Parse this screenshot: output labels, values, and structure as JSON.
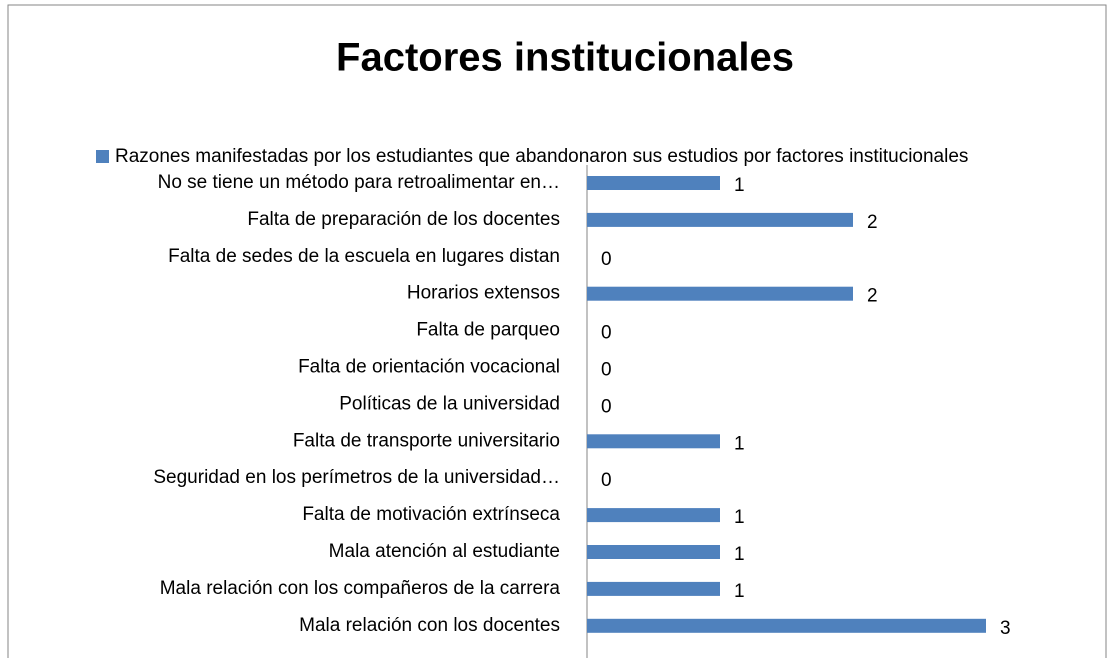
{
  "chart_data": {
    "type": "bar",
    "orientation": "horizontal",
    "title": "Factores institucionales",
    "categories": [
      "No se tiene un método para retroalimentar en…",
      "Falta de preparación de los docentes",
      "Falta de sedes de la escuela en lugares distan",
      "Horarios extensos",
      "Falta de parqueo",
      "Falta de orientación vocacional",
      "Políticas de la universidad",
      "Falta de transporte universitario",
      "Seguridad en los perímetros de la universidad…",
      "Falta de motivación extrínseca",
      "Mala atención al estudiante",
      "Mala relación con los compañeros de la carrera",
      "Mala relación con los docentes"
    ],
    "series": [
      {
        "name": "Razones manifestadas por los estudiantes que abandonaron sus estudios por factores institucionales",
        "color": "#4f81bd",
        "values": [
          1,
          2,
          0,
          2,
          0,
          0,
          0,
          1,
          0,
          1,
          1,
          1,
          3
        ]
      }
    ],
    "xlim": [
      0,
      3.5
    ],
    "legend": "top"
  }
}
